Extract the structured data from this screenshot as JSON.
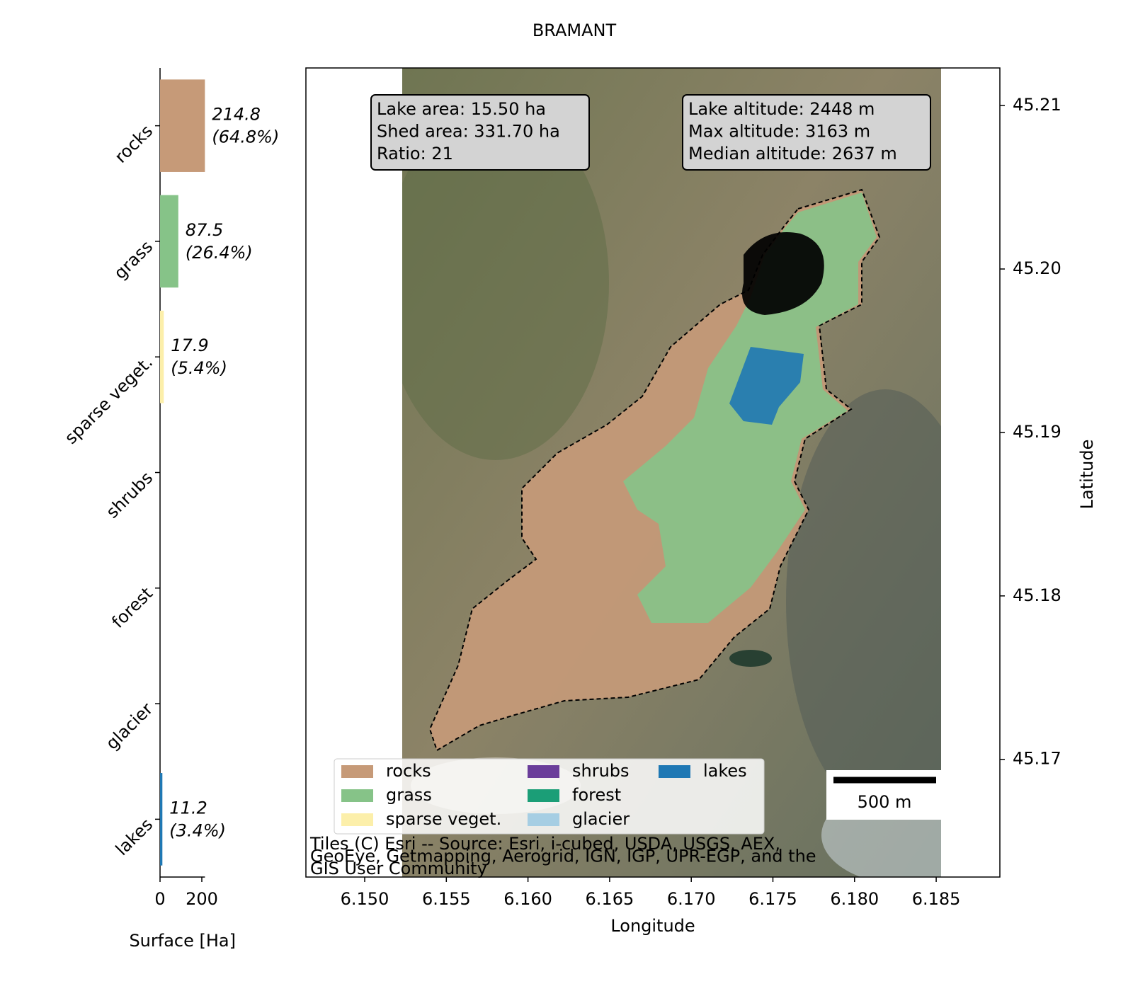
{
  "chart_data": [
    {
      "type": "barh",
      "categories": [
        "rocks",
        "grass",
        "sparse veget.",
        "shrubs",
        "forest",
        "glacier",
        "lakes"
      ],
      "values": [
        214.8,
        87.5,
        17.9,
        0,
        0,
        0,
        11.2
      ],
      "share_labels": [
        "(64.8%)",
        "(26.4%)",
        "(5.4%)",
        null,
        null,
        null,
        "(3.4%)"
      ],
      "colors": [
        "#c69a78",
        "#86c388",
        "#fcefaa",
        "#6a3d9a",
        "#1b9e77",
        "#a6cee3",
        "#1f78b4"
      ],
      "xlim": [
        0,
        215
      ],
      "xticks": [
        0,
        200
      ],
      "xlabel": "Surface [Ha]"
    },
    {
      "type": "map",
      "title": "BRAMANT",
      "xlabel": "Longitude",
      "ylabel": "Latitude",
      "xlim": [
        6.1464,
        6.1889
      ],
      "xticks": [
        {
          "value": 6.15,
          "label": "6.150"
        },
        {
          "value": 6.155,
          "label": "6.155"
        },
        {
          "value": 6.16,
          "label": "6.160"
        },
        {
          "value": 6.165,
          "label": "6.165"
        },
        {
          "value": 6.17,
          "label": "6.170"
        },
        {
          "value": 6.175,
          "label": "6.175"
        },
        {
          "value": 6.18,
          "label": "6.180"
        },
        {
          "value": 6.185,
          "label": "6.185"
        }
      ],
      "ylim": [
        45.1628,
        45.2123
      ],
      "yticks": [
        45.17,
        45.18,
        45.19,
        {
          "value": 45.2,
          "label": "45.20"
        },
        45.21
      ],
      "info_boxes": [
        [
          "Lake area: 15.50 ha",
          "Shed area: 331.70 ha",
          "Ratio: 21"
        ],
        [
          "Lake altitude: 2448 m",
          "Max altitude: 3163 m",
          "Median altitude: 2637 m"
        ]
      ],
      "legend": [
        {
          "name": "rocks",
          "color": "#c69a78"
        },
        {
          "name": "grass",
          "color": "#86c388"
        },
        {
          "name": "sparse veget.",
          "color": "#fcefaa"
        },
        {
          "name": "shrubs",
          "color": "#6a3d9a"
        },
        {
          "name": "forest",
          "color": "#1b9e77"
        },
        {
          "name": "glacier",
          "color": "#a6cee3"
        },
        {
          "name": "lakes",
          "color": "#1f78b4"
        }
      ],
      "scale_bar": "500 m",
      "attribution": [
        "Tiles (C) Esri -- Source: Esri, i-cubed, USDA, USGS, AEX,",
        "GeoEye, Getmapping, Aerogrid, IGN, IGP, UPR-EGP, and the",
        "GIS User Community"
      ]
    }
  ]
}
